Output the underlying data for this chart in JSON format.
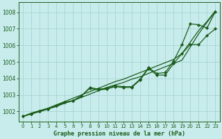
{
  "bg_color": "#c8ecec",
  "grid_color": "#b0d8d8",
  "line_color": "#1a5c1a",
  "marker_color": "#1a5c1a",
  "xlim": [
    -0.5,
    23.5
  ],
  "ylim": [
    1001.4,
    1008.6
  ],
  "yticks": [
    1002,
    1003,
    1004,
    1005,
    1006,
    1007,
    1008
  ],
  "xticks": [
    0,
    1,
    2,
    3,
    4,
    5,
    6,
    7,
    8,
    9,
    10,
    11,
    12,
    13,
    14,
    15,
    16,
    17,
    18,
    19,
    20,
    21,
    22,
    23
  ],
  "xlabel": "Graphe pression niveau de la mer (hPa)",
  "series": {
    "straight1": [
      1001.7,
      1001.85,
      1002.0,
      1002.15,
      1002.3,
      1002.5,
      1002.65,
      1002.85,
      1003.05,
      1003.25,
      1003.45,
      1003.6,
      1003.75,
      1003.95,
      1004.1,
      1004.3,
      1004.5,
      1004.7,
      1004.9,
      1005.1,
      1005.9,
      1006.7,
      1007.4,
      1008.05
    ],
    "straight2": [
      1001.7,
      1001.9,
      1002.05,
      1002.2,
      1002.4,
      1002.6,
      1002.8,
      1003.0,
      1003.2,
      1003.4,
      1003.6,
      1003.8,
      1003.95,
      1004.15,
      1004.35,
      1004.55,
      1004.75,
      1004.95,
      1005.15,
      1005.5,
      1006.2,
      1006.9,
      1007.45,
      1008.1
    ],
    "zigzag": [
      1001.7,
      1001.85,
      1002.0,
      1002.15,
      1002.35,
      1002.55,
      1002.65,
      1002.95,
      1003.45,
      1003.35,
      1003.4,
      1003.55,
      1003.5,
      1003.5,
      1003.95,
      1004.65,
      1004.3,
      1004.35,
      1005.05,
      1006.05,
      1007.3,
      1007.25,
      1007.05,
      1008.05
    ],
    "flat": [
      1001.7,
      1001.85,
      1002.0,
      1002.15,
      1002.35,
      1002.55,
      1002.65,
      1002.95,
      1003.4,
      1003.3,
      1003.35,
      1003.5,
      1003.45,
      1003.45,
      1003.9,
      1004.6,
      1004.2,
      1004.2,
      1004.9,
      1005.5,
      1006.05,
      1006.05,
      1006.6,
      1007.0
    ]
  }
}
